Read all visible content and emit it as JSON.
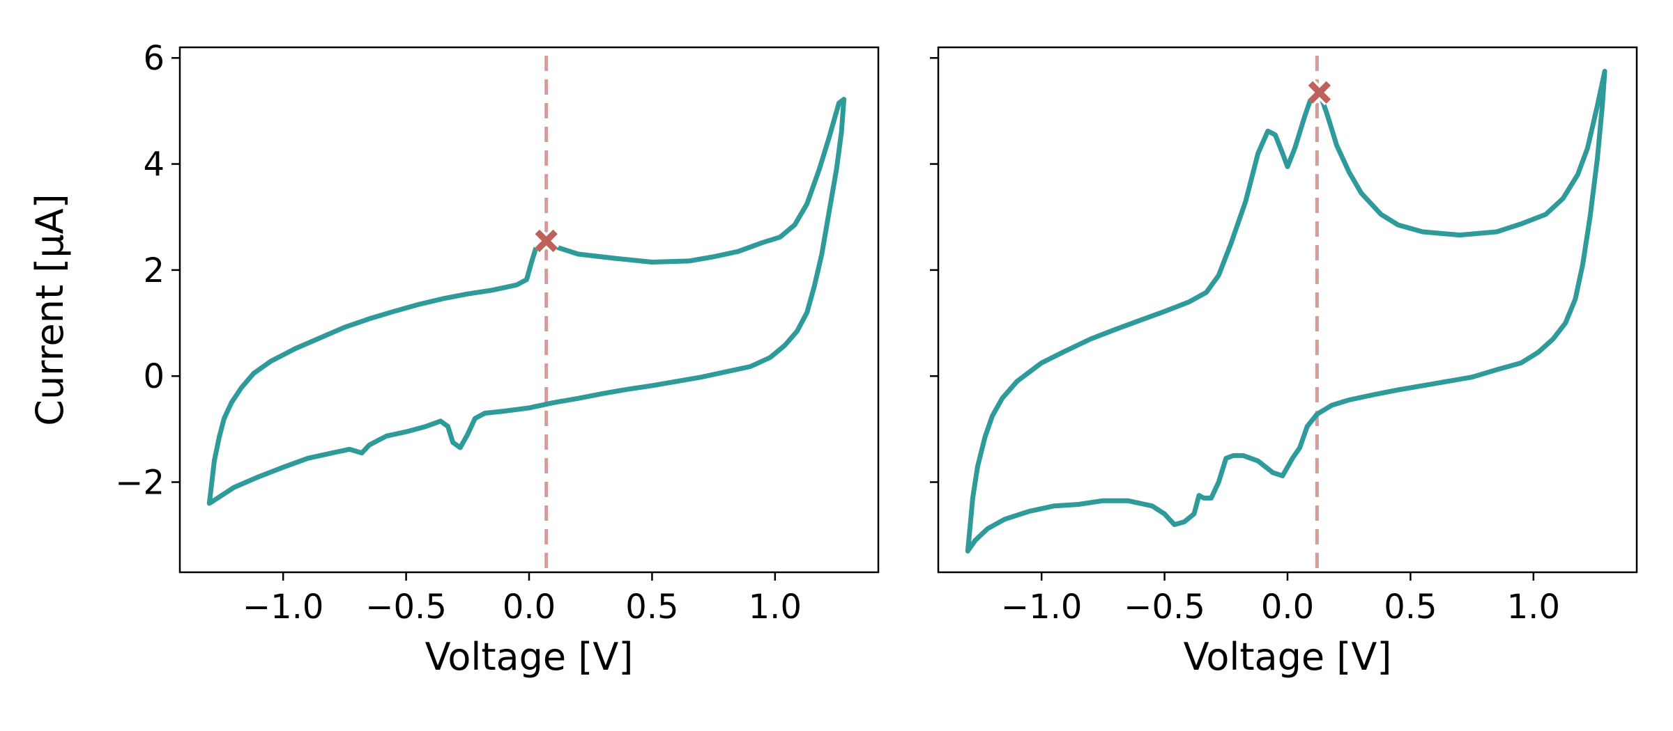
{
  "chart_data": [
    {
      "type": "line",
      "xlabel": "Voltage [V]",
      "ylabel": "Current [µA]",
      "xlim": [
        -1.42,
        1.42
      ],
      "ylim": [
        -3.7,
        6.2
      ],
      "xticks": [
        -1.0,
        -0.5,
        0.0,
        0.5,
        1.0
      ],
      "xtick_labels": [
        "−1.0",
        "−0.5",
        "0.0",
        "0.5",
        "1.0"
      ],
      "yticks": [
        -2,
        0,
        2,
        4,
        6
      ],
      "ytick_labels": [
        "−2",
        "0",
        "2",
        "4",
        "6"
      ],
      "grid": false,
      "line_color": "#2e9a9a",
      "marker_color": "#c0605a",
      "vline_color": "#d89a96",
      "series": [
        {
          "points": [
            [
              -1.3,
              -2.4
            ],
            [
              -1.29,
              -2.0
            ],
            [
              -1.28,
              -1.6
            ],
            [
              -1.26,
              -1.15
            ],
            [
              -1.24,
              -0.8
            ],
            [
              -1.21,
              -0.5
            ],
            [
              -1.17,
              -0.22
            ],
            [
              -1.12,
              0.05
            ],
            [
              -1.05,
              0.28
            ],
            [
              -0.95,
              0.52
            ],
            [
              -0.85,
              0.72
            ],
            [
              -0.75,
              0.92
            ],
            [
              -0.65,
              1.08
            ],
            [
              -0.55,
              1.22
            ],
            [
              -0.45,
              1.35
            ],
            [
              -0.35,
              1.46
            ],
            [
              -0.25,
              1.55
            ],
            [
              -0.15,
              1.62
            ],
            [
              -0.05,
              1.72
            ],
            [
              -0.01,
              1.82
            ],
            [
              0.01,
              2.15
            ],
            [
              0.03,
              2.45
            ],
            [
              0.07,
              2.55
            ],
            [
              0.12,
              2.42
            ],
            [
              0.2,
              2.3
            ],
            [
              0.35,
              2.22
            ],
            [
              0.5,
              2.15
            ],
            [
              0.65,
              2.17
            ],
            [
              0.75,
              2.25
            ],
            [
              0.85,
              2.35
            ],
            [
              0.95,
              2.52
            ],
            [
              1.02,
              2.62
            ],
            [
              1.08,
              2.85
            ],
            [
              1.13,
              3.25
            ],
            [
              1.18,
              3.9
            ],
            [
              1.22,
              4.5
            ],
            [
              1.26,
              5.15
            ],
            [
              1.28,
              5.22
            ],
            [
              1.27,
              4.6
            ],
            [
              1.25,
              3.9
            ],
            [
              1.22,
              3.1
            ],
            [
              1.19,
              2.3
            ],
            [
              1.16,
              1.7
            ],
            [
              1.13,
              1.2
            ],
            [
              1.09,
              0.85
            ],
            [
              1.04,
              0.58
            ],
            [
              0.98,
              0.35
            ],
            [
              0.9,
              0.18
            ],
            [
              0.8,
              0.08
            ],
            [
              0.7,
              -0.02
            ],
            [
              0.6,
              -0.1
            ],
            [
              0.5,
              -0.18
            ],
            [
              0.4,
              -0.25
            ],
            [
              0.3,
              -0.33
            ],
            [
              0.2,
              -0.42
            ],
            [
              0.1,
              -0.5
            ],
            [
              0.0,
              -0.6
            ],
            [
              -0.1,
              -0.66
            ],
            [
              -0.18,
              -0.7
            ],
            [
              -0.22,
              -0.8
            ],
            [
              -0.25,
              -1.1
            ],
            [
              -0.28,
              -1.35
            ],
            [
              -0.31,
              -1.25
            ],
            [
              -0.33,
              -0.95
            ],
            [
              -0.36,
              -0.85
            ],
            [
              -0.42,
              -0.95
            ],
            [
              -0.5,
              -1.05
            ],
            [
              -0.58,
              -1.13
            ],
            [
              -0.65,
              -1.3
            ],
            [
              -0.68,
              -1.45
            ],
            [
              -0.73,
              -1.38
            ],
            [
              -0.8,
              -1.45
            ],
            [
              -0.9,
              -1.55
            ],
            [
              -1.0,
              -1.72
            ],
            [
              -1.1,
              -1.9
            ],
            [
              -1.2,
              -2.1
            ],
            [
              -1.26,
              -2.28
            ],
            [
              -1.3,
              -2.4
            ]
          ]
        }
      ],
      "vline_x": 0.07,
      "marker": {
        "x": 0.07,
        "y": 2.55
      }
    },
    {
      "type": "line",
      "xlabel": "Voltage [V]",
      "ylabel": "",
      "xlim": [
        -1.42,
        1.42
      ],
      "ylim": [
        -3.7,
        6.2
      ],
      "xticks": [
        -1.0,
        -0.5,
        0.0,
        0.5,
        1.0
      ],
      "xtick_labels": [
        "−1.0",
        "−0.5",
        "0.0",
        "0.5",
        "1.0"
      ],
      "yticks": [
        -2,
        0,
        2,
        4,
        6
      ],
      "ytick_labels": [],
      "grid": false,
      "line_color": "#2e9a9a",
      "marker_color": "#c0605a",
      "vline_color": "#d89a96",
      "series": [
        {
          "points": [
            [
              -1.3,
              -3.3
            ],
            [
              -1.29,
              -2.8
            ],
            [
              -1.28,
              -2.3
            ],
            [
              -1.26,
              -1.7
            ],
            [
              -1.23,
              -1.15
            ],
            [
              -1.2,
              -0.75
            ],
            [
              -1.16,
              -0.42
            ],
            [
              -1.1,
              -0.1
            ],
            [
              -1.0,
              0.25
            ],
            [
              -0.9,
              0.48
            ],
            [
              -0.8,
              0.7
            ],
            [
              -0.7,
              0.88
            ],
            [
              -0.6,
              1.05
            ],
            [
              -0.5,
              1.22
            ],
            [
              -0.4,
              1.4
            ],
            [
              -0.33,
              1.58
            ],
            [
              -0.28,
              1.9
            ],
            [
              -0.23,
              2.5
            ],
            [
              -0.17,
              3.3
            ],
            [
              -0.12,
              4.2
            ],
            [
              -0.08,
              4.62
            ],
            [
              -0.05,
              4.55
            ],
            [
              -0.02,
              4.2
            ],
            [
              0.0,
              3.95
            ],
            [
              0.03,
              4.3
            ],
            [
              0.07,
              4.9
            ],
            [
              0.1,
              5.3
            ],
            [
              0.13,
              5.35
            ],
            [
              0.16,
              4.95
            ],
            [
              0.2,
              4.35
            ],
            [
              0.25,
              3.85
            ],
            [
              0.3,
              3.45
            ],
            [
              0.38,
              3.05
            ],
            [
              0.45,
              2.85
            ],
            [
              0.55,
              2.72
            ],
            [
              0.7,
              2.66
            ],
            [
              0.85,
              2.72
            ],
            [
              0.95,
              2.87
            ],
            [
              1.05,
              3.05
            ],
            [
              1.12,
              3.35
            ],
            [
              1.18,
              3.8
            ],
            [
              1.22,
              4.3
            ],
            [
              1.26,
              5.1
            ],
            [
              1.29,
              5.75
            ],
            [
              1.28,
              5.1
            ],
            [
              1.26,
              4.1
            ],
            [
              1.23,
              3.0
            ],
            [
              1.2,
              2.1
            ],
            [
              1.17,
              1.45
            ],
            [
              1.13,
              1.0
            ],
            [
              1.08,
              0.7
            ],
            [
              1.02,
              0.45
            ],
            [
              0.95,
              0.25
            ],
            [
              0.85,
              0.12
            ],
            [
              0.75,
              -0.02
            ],
            [
              0.65,
              -0.1
            ],
            [
              0.55,
              -0.18
            ],
            [
              0.45,
              -0.26
            ],
            [
              0.35,
              -0.35
            ],
            [
              0.25,
              -0.45
            ],
            [
              0.18,
              -0.55
            ],
            [
              0.12,
              -0.72
            ],
            [
              0.08,
              -0.95
            ],
            [
              0.05,
              -1.35
            ],
            [
              0.02,
              -1.55
            ],
            [
              -0.02,
              -1.88
            ],
            [
              -0.06,
              -1.82
            ],
            [
              -0.12,
              -1.6
            ],
            [
              -0.18,
              -1.5
            ],
            [
              -0.22,
              -1.5
            ],
            [
              -0.25,
              -1.55
            ],
            [
              -0.28,
              -2.0
            ],
            [
              -0.31,
              -2.3
            ],
            [
              -0.34,
              -2.3
            ],
            [
              -0.36,
              -2.25
            ],
            [
              -0.38,
              -2.6
            ],
            [
              -0.42,
              -2.75
            ],
            [
              -0.46,
              -2.8
            ],
            [
              -0.5,
              -2.6
            ],
            [
              -0.55,
              -2.45
            ],
            [
              -0.65,
              -2.35
            ],
            [
              -0.75,
              -2.35
            ],
            [
              -0.85,
              -2.42
            ],
            [
              -0.95,
              -2.45
            ],
            [
              -1.05,
              -2.55
            ],
            [
              -1.15,
              -2.7
            ],
            [
              -1.22,
              -2.88
            ],
            [
              -1.27,
              -3.1
            ],
            [
              -1.3,
              -3.3
            ]
          ]
        }
      ],
      "vline_x": 0.12,
      "marker": {
        "x": 0.13,
        "y": 5.35
      }
    }
  ]
}
